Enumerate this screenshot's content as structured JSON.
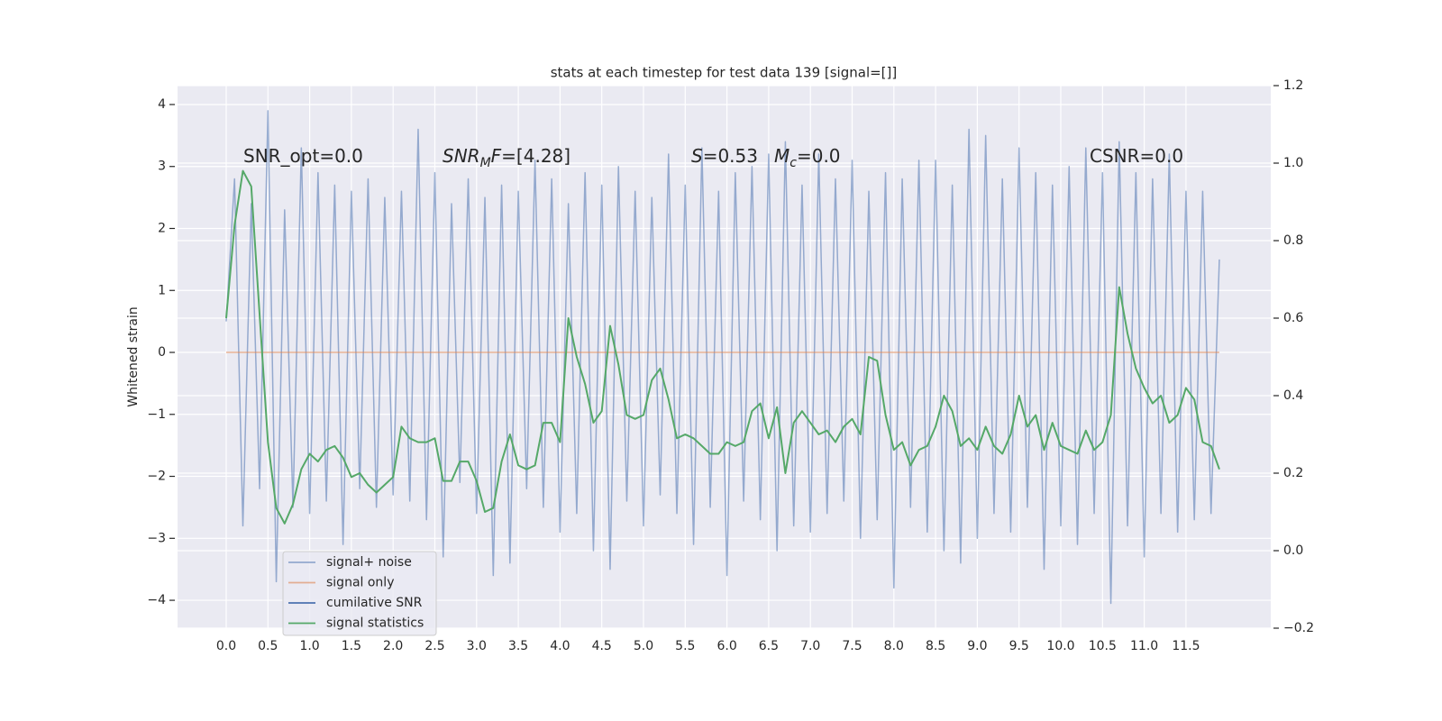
{
  "chart_data": {
    "type": "line",
    "title": "stats at each timestep for test data 139 [signal=[]]",
    "ylabel": "Whitened strain",
    "grid": true,
    "legend": "lower left",
    "xlim": [
      -0.583,
      12.516
    ],
    "ylim": [
      -4.45,
      4.305
    ],
    "y2lim": [
      -0.2,
      1.2
    ],
    "xticks": [
      {
        "value": 0,
        "label": "0.0"
      },
      0.5,
      {
        "value": 1,
        "label": "1.0"
      },
      1.5,
      {
        "value": 2,
        "label": "2.0"
      },
      2.5,
      {
        "value": 3,
        "label": "3.0"
      },
      3.5,
      {
        "value": 4,
        "label": "4.0"
      },
      4.5,
      {
        "value": 5,
        "label": "5.0"
      },
      5.5,
      {
        "value": 6,
        "label": "6.0"
      },
      6.5,
      {
        "value": 7,
        "label": "7.0"
      },
      7.5,
      {
        "value": 8,
        "label": "8.0"
      },
      8.5,
      {
        "value": 9,
        "label": "9.0"
      },
      9.5,
      {
        "value": 10,
        "label": "10.0"
      },
      10.5,
      {
        "value": 11,
        "label": "11.0"
      },
      11.5
    ],
    "yticks": [
      {
        "value": -4,
        "label": "−4"
      },
      {
        "value": -3,
        "label": "−3"
      },
      {
        "value": -2,
        "label": "−2"
      },
      {
        "value": -1,
        "label": "−1"
      },
      0,
      1,
      2,
      3,
      4
    ],
    "y2ticks": [
      {
        "value": -0.2,
        "label": "−0.2"
      },
      {
        "value": 0,
        "label": "0.0"
      },
      0.2,
      0.4,
      0.6,
      0.8,
      {
        "value": 1,
        "label": "1.0"
      },
      1.2
    ],
    "annotations": [
      {
        "parts": [
          {
            "text": "SNR_opt=0.0",
            "style": "normal"
          }
        ]
      },
      {
        "parts": [
          {
            "text": "SNR",
            "style": "italic"
          },
          {
            "text": "M",
            "style": "sub"
          },
          {
            "text": "F",
            "style": "italic"
          },
          {
            "text": "=[4.28]",
            "style": "normal"
          }
        ]
      },
      {
        "parts": [
          {
            "text": "S",
            "style": "italic"
          },
          {
            "text": "=0.53",
            "style": "normal"
          }
        ]
      },
      {
        "parts": [
          {
            "text": "M",
            "style": "italic"
          },
          {
            "text": "c",
            "style": "sub"
          },
          {
            "text": "=0.0",
            "style": "normal"
          }
        ]
      },
      {
        "parts": [
          {
            "text": "CSNR=0.0",
            "style": "normal"
          }
        ]
      }
    ],
    "x": [
      0.0,
      0.1,
      0.2,
      0.3,
      0.4,
      0.5,
      0.6,
      0.7,
      0.8,
      0.9,
      1.0,
      1.1,
      1.2,
      1.3,
      1.4,
      1.5,
      1.6,
      1.7,
      1.8,
      1.9,
      2.0,
      2.1,
      2.2,
      2.3,
      2.4,
      2.5,
      2.6,
      2.7,
      2.8,
      2.9,
      3.0,
      3.1,
      3.2,
      3.3,
      3.4,
      3.5,
      3.6,
      3.7,
      3.8,
      3.9,
      4.0,
      4.1,
      4.2,
      4.3,
      4.4,
      4.5,
      4.6,
      4.7,
      4.8,
      4.9,
      5.0,
      5.1,
      5.2,
      5.3,
      5.4,
      5.5,
      5.6,
      5.7,
      5.8,
      5.9,
      6.0,
      6.1,
      6.2,
      6.3,
      6.4,
      6.5,
      6.6,
      6.7,
      6.8,
      6.9,
      7.0,
      7.1,
      7.2,
      7.3,
      7.4,
      7.5,
      7.6,
      7.7,
      7.8,
      7.9,
      8.0,
      8.1,
      8.2,
      8.3,
      8.4,
      8.5,
      8.6,
      8.7,
      8.8,
      8.9,
      9.0,
      9.1,
      9.2,
      9.3,
      9.4,
      9.5,
      9.6,
      9.7,
      9.8,
      9.9,
      10.0,
      10.1,
      10.2,
      10.3,
      10.4,
      10.5,
      10.6,
      10.7,
      10.8,
      10.9,
      11.0,
      11.1,
      11.2,
      11.3,
      11.4,
      11.5,
      11.6,
      11.7,
      11.8,
      11.9
    ],
    "series": [
      {
        "name": "signal+ noise",
        "color": "#4c72b0",
        "alpha": 0.55,
        "axis": "y",
        "values": [
          0.5,
          2.8,
          -2.8,
          2.4,
          -2.2,
          3.9,
          -3.7,
          2.3,
          -2.5,
          3.3,
          -2.6,
          2.9,
          -2.4,
          2.7,
          -3.1,
          2.6,
          -2.2,
          2.8,
          -2.5,
          2.5,
          -2.3,
          2.6,
          -2.4,
          3.6,
          -2.7,
          2.9,
          -3.3,
          2.4,
          -2.1,
          2.8,
          -2.6,
          2.5,
          -3.6,
          2.7,
          -3.4,
          2.6,
          -2.2,
          3.1,
          -2.5,
          2.8,
          -2.9,
          2.4,
          -2.6,
          2.9,
          -3.2,
          2.7,
          -3.5,
          3.0,
          -2.4,
          2.6,
          -2.8,
          2.5,
          -2.3,
          3.2,
          -2.6,
          2.7,
          -3.1,
          3.3,
          -2.5,
          2.6,
          -3.6,
          2.9,
          -2.4,
          3.0,
          -2.7,
          3.2,
          -3.2,
          3.4,
          -2.8,
          2.7,
          -2.9,
          3.2,
          -2.6,
          2.8,
          -2.4,
          3.1,
          -3.0,
          2.6,
          -2.7,
          2.9,
          -3.8,
          2.8,
          -2.5,
          3.1,
          -2.9,
          3.1,
          -3.2,
          2.7,
          -3.4,
          3.6,
          -3.0,
          3.5,
          -2.6,
          2.8,
          -2.9,
          3.3,
          -2.5,
          2.9,
          -3.5,
          2.7,
          -2.8,
          3.0,
          -3.1,
          3.3,
          -2.6,
          2.9,
          -4.05,
          3.4,
          -2.8,
          2.9,
          -3.3,
          2.8,
          -2.6,
          3.2,
          -2.9,
          2.6,
          -2.7,
          2.6,
          -2.6,
          1.5
        ]
      },
      {
        "name": "signal only",
        "color": "#dd8452",
        "alpha": 0.6,
        "axis": "y",
        "values": [
          0,
          0,
          0,
          0,
          0,
          0,
          0,
          0,
          0,
          0,
          0,
          0,
          0,
          0,
          0,
          0,
          0,
          0,
          0,
          0,
          0,
          0,
          0,
          0,
          0,
          0,
          0,
          0,
          0,
          0,
          0,
          0,
          0,
          0,
          0,
          0,
          0,
          0,
          0,
          0,
          0,
          0,
          0,
          0,
          0,
          0,
          0,
          0,
          0,
          0,
          0,
          0,
          0,
          0,
          0,
          0,
          0,
          0,
          0,
          0,
          0,
          0,
          0,
          0,
          0,
          0,
          0,
          0,
          0,
          0,
          0,
          0,
          0,
          0,
          0,
          0,
          0,
          0,
          0,
          0,
          0,
          0,
          0,
          0,
          0,
          0,
          0,
          0,
          0,
          0,
          0,
          0,
          0,
          0,
          0,
          0,
          0,
          0,
          0,
          0,
          0,
          0,
          0,
          0,
          0,
          0,
          0,
          0,
          0,
          0,
          0,
          0,
          0,
          0,
          0,
          0,
          0,
          0,
          0,
          0
        ]
      },
      {
        "name": "cumilative SNR",
        "color": "#4c72b0",
        "alpha": 1,
        "axis": "y2"
      },
      {
        "name": "signal statistics",
        "color": "#55a868",
        "alpha": 1,
        "axis": "y2",
        "values": [
          0.6,
          0.84,
          0.98,
          0.94,
          0.61,
          0.28,
          0.11,
          0.07,
          0.12,
          0.21,
          0.25,
          0.23,
          0.26,
          0.27,
          0.24,
          0.19,
          0.2,
          0.17,
          0.15,
          0.17,
          0.19,
          0.32,
          0.29,
          0.28,
          0.28,
          0.29,
          0.18,
          0.18,
          0.23,
          0.23,
          0.18,
          0.1,
          0.11,
          0.23,
          0.3,
          0.22,
          0.21,
          0.22,
          0.33,
          0.33,
          0.28,
          0.6,
          0.5,
          0.43,
          0.33,
          0.36,
          0.58,
          0.48,
          0.35,
          0.34,
          0.35,
          0.44,
          0.47,
          0.39,
          0.29,
          0.3,
          0.29,
          0.27,
          0.25,
          0.25,
          0.28,
          0.27,
          0.28,
          0.36,
          0.38,
          0.29,
          0.37,
          0.2,
          0.33,
          0.36,
          0.33,
          0.3,
          0.31,
          0.28,
          0.32,
          0.34,
          0.3,
          0.5,
          0.49,
          0.35,
          0.26,
          0.28,
          0.22,
          0.26,
          0.27,
          0.32,
          0.4,
          0.36,
          0.27,
          0.29,
          0.26,
          0.32,
          0.27,
          0.25,
          0.3,
          0.4,
          0.32,
          0.35,
          0.26,
          0.33,
          0.27,
          0.26,
          0.25,
          0.31,
          0.26,
          0.28,
          0.35,
          0.68,
          0.56,
          0.47,
          0.42,
          0.38,
          0.4,
          0.33,
          0.35,
          0.42,
          0.39,
          0.28,
          0.27,
          0.21
        ]
      }
    ]
  }
}
